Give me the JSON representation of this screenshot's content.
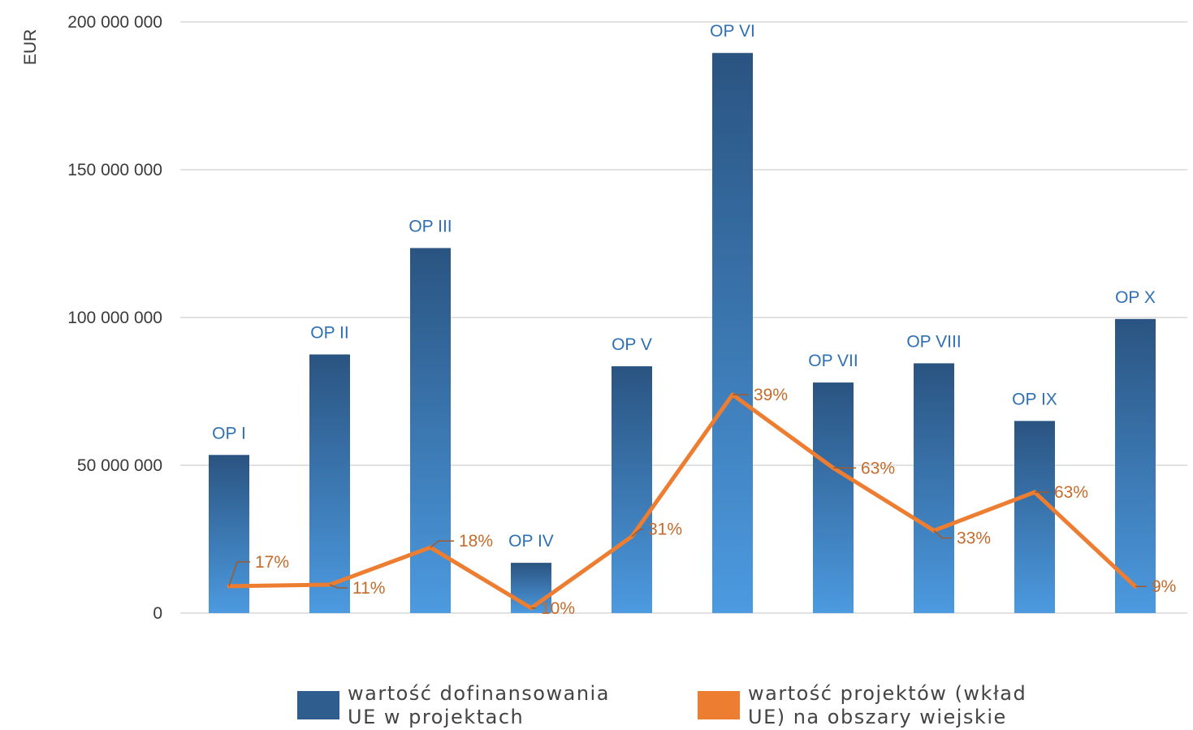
{
  "chart_data": {
    "type": "bar",
    "ylabel": "EUR",
    "ylim": [
      0,
      200000000
    ],
    "yticks": [
      {
        "value": 0,
        "label": "0"
      },
      {
        "value": 50000000,
        "label": "50 000 000"
      },
      {
        "value": 100000000,
        "label": "100 000 000"
      },
      {
        "value": 150000000,
        "label": "150 000 000"
      },
      {
        "value": 200000000,
        "label": "200 000 000"
      }
    ],
    "grid": true,
    "categories": [
      "OP I",
      "OP II",
      "OP III",
      "OP IV",
      "OP V",
      "OP VI",
      "OP VII",
      "OP VIII",
      "OP IX",
      "OP X"
    ],
    "series": [
      {
        "name": "wartość dofinansowania UE w projektach",
        "type": "bar",
        "color": "#3a7bbf",
        "values": [
          53500000,
          87500000,
          123500000,
          17000000,
          83500000,
          189500000,
          78000000,
          84500000,
          65000000,
          99500000
        ]
      },
      {
        "name": "wartość projektów (wkład UE) na obszary wiejskie",
        "type": "line",
        "color": "#ed7d31",
        "values": [
          9100000,
          9600000,
          22200000,
          1700000,
          25900000,
          73900000,
          49100000,
          27900000,
          40900000,
          9000000
        ],
        "labels": [
          "17%",
          "11%",
          "18%",
          "10%",
          "31%",
          "39%",
          "63%",
          "33%",
          "63%",
          "9%"
        ]
      }
    ],
    "legend_position": "bottom"
  },
  "legend": {
    "bar_line1": "wartość dofinansowania",
    "bar_line2": "UE w projektach",
    "line_line1": "wartość projektów (wkład",
    "line_line2": "UE) na obszary wiejskie",
    "bar_color": "#2e5d8e",
    "line_color": "#ed7d31"
  }
}
